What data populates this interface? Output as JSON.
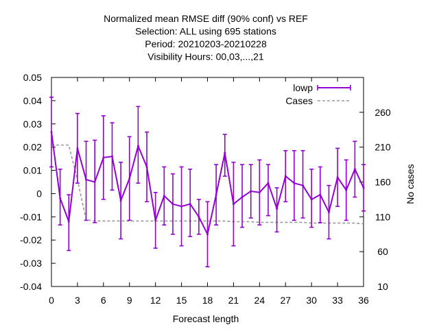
{
  "chart_data": {
    "type": "line",
    "title_lines": [
      "Normalized mean RMSE diff (90% conf) vs REF",
      "Selection: ALL using   695 stations",
      "Period: 20210203-20210228",
      "Visibility   Hours:  00,03,...,21"
    ],
    "xlabel": "Forecast length",
    "ylabel": "",
    "y2label": "No cases",
    "xlim": [
      0,
      36
    ],
    "ylim": [
      -0.04,
      0.05
    ],
    "y2lim": [
      10,
      310
    ],
    "xticks": [
      0,
      3,
      6,
      9,
      12,
      15,
      18,
      21,
      24,
      27,
      30,
      33,
      36
    ],
    "yticks": [
      -0.04,
      -0.03,
      -0.02,
      -0.01,
      0,
      0.01,
      0.02,
      0.03,
      0.04,
      0.05
    ],
    "ytick_labels": [
      "-0.04",
      "-0.03",
      "-0.02",
      "-0.01",
      "0",
      "0.01",
      "0.02",
      "0.03",
      "0.04",
      "0.05"
    ],
    "y2ticks": [
      10,
      60,
      110,
      160,
      210,
      260
    ],
    "legend_position": "top-right",
    "series": [
      {
        "name": "lowp",
        "color": "#9400d3",
        "x": [
          0,
          1,
          2,
          3,
          4,
          5,
          6,
          7,
          8,
          9,
          10,
          11,
          12,
          13,
          14,
          15,
          16,
          17,
          18,
          19,
          20,
          21,
          22,
          23,
          24,
          25,
          26,
          27,
          28,
          29,
          30,
          31,
          32,
          33,
          34,
          35,
          36
        ],
        "y": [
          0.0265,
          -0.002,
          -0.012,
          0.0195,
          0.006,
          0.005,
          0.0155,
          0.016,
          -0.003,
          0.0065,
          0.0205,
          0.0115,
          -0.0115,
          -0.001,
          -0.0045,
          -0.0055,
          -0.0045,
          -0.01,
          -0.0175,
          -0.0005,
          0.0175,
          -0.0045,
          -0.0015,
          0.001,
          0.0005,
          0.0045,
          -0.0065,
          0.0075,
          0.0045,
          0.0035,
          -0.0025,
          -0.0005,
          -0.008,
          0.007,
          0.0015,
          0.0105,
          0.0025
        ],
        "err_low": [
          0.0115,
          -0.0135,
          -0.0245,
          0.0045,
          -0.0115,
          -0.0125,
          -0.0025,
          0.0015,
          -0.0195,
          -0.0115,
          0.0045,
          -0.0035,
          -0.0235,
          -0.0135,
          -0.0175,
          -0.0225,
          -0.0185,
          -0.0175,
          -0.0315,
          -0.0135,
          0.0075,
          -0.0225,
          -0.0145,
          -0.0105,
          -0.0135,
          -0.0095,
          -0.0165,
          -0.0035,
          -0.0115,
          -0.0105,
          -0.0145,
          -0.0125,
          -0.0195,
          -0.0055,
          -0.0115,
          -0.0015,
          -0.0075
        ],
        "err_high": [
          0.0415,
          0.0105,
          -0.0005,
          0.0345,
          0.0225,
          0.023,
          0.0335,
          0.0305,
          0.0135,
          0.0245,
          0.0375,
          0.0265,
          0.0005,
          0.0115,
          0.0085,
          0.0115,
          0.0105,
          -0.0025,
          -0.0035,
          0.0125,
          0.0255,
          0.0135,
          0.0125,
          0.0125,
          0.0145,
          0.0125,
          0.0025,
          0.0185,
          0.0185,
          0.0185,
          0.0105,
          0.0115,
          0.0035,
          0.0195,
          0.0145,
          0.0225,
          0.0125
        ]
      },
      {
        "name": "Cases",
        "color": "#999999",
        "axis": "y2",
        "x": [
          0,
          1,
          2,
          3,
          4,
          5,
          6,
          7,
          8,
          9,
          10,
          11,
          12,
          13,
          14,
          15,
          16,
          17,
          18,
          19,
          20,
          21,
          22,
          23,
          24,
          25,
          26,
          27,
          28,
          29,
          30,
          31,
          32,
          33,
          34,
          35,
          36
        ],
        "values": [
          213,
          213,
          213,
          163,
          106,
          104,
          104,
          104,
          104,
          104,
          104,
          104,
          104,
          104,
          104,
          104,
          104,
          104,
          104,
          104,
          104,
          103,
          103,
          103,
          102,
          102,
          102,
          102,
          102,
          102,
          101,
          101,
          101,
          101,
          101,
          101,
          100
        ]
      }
    ]
  }
}
